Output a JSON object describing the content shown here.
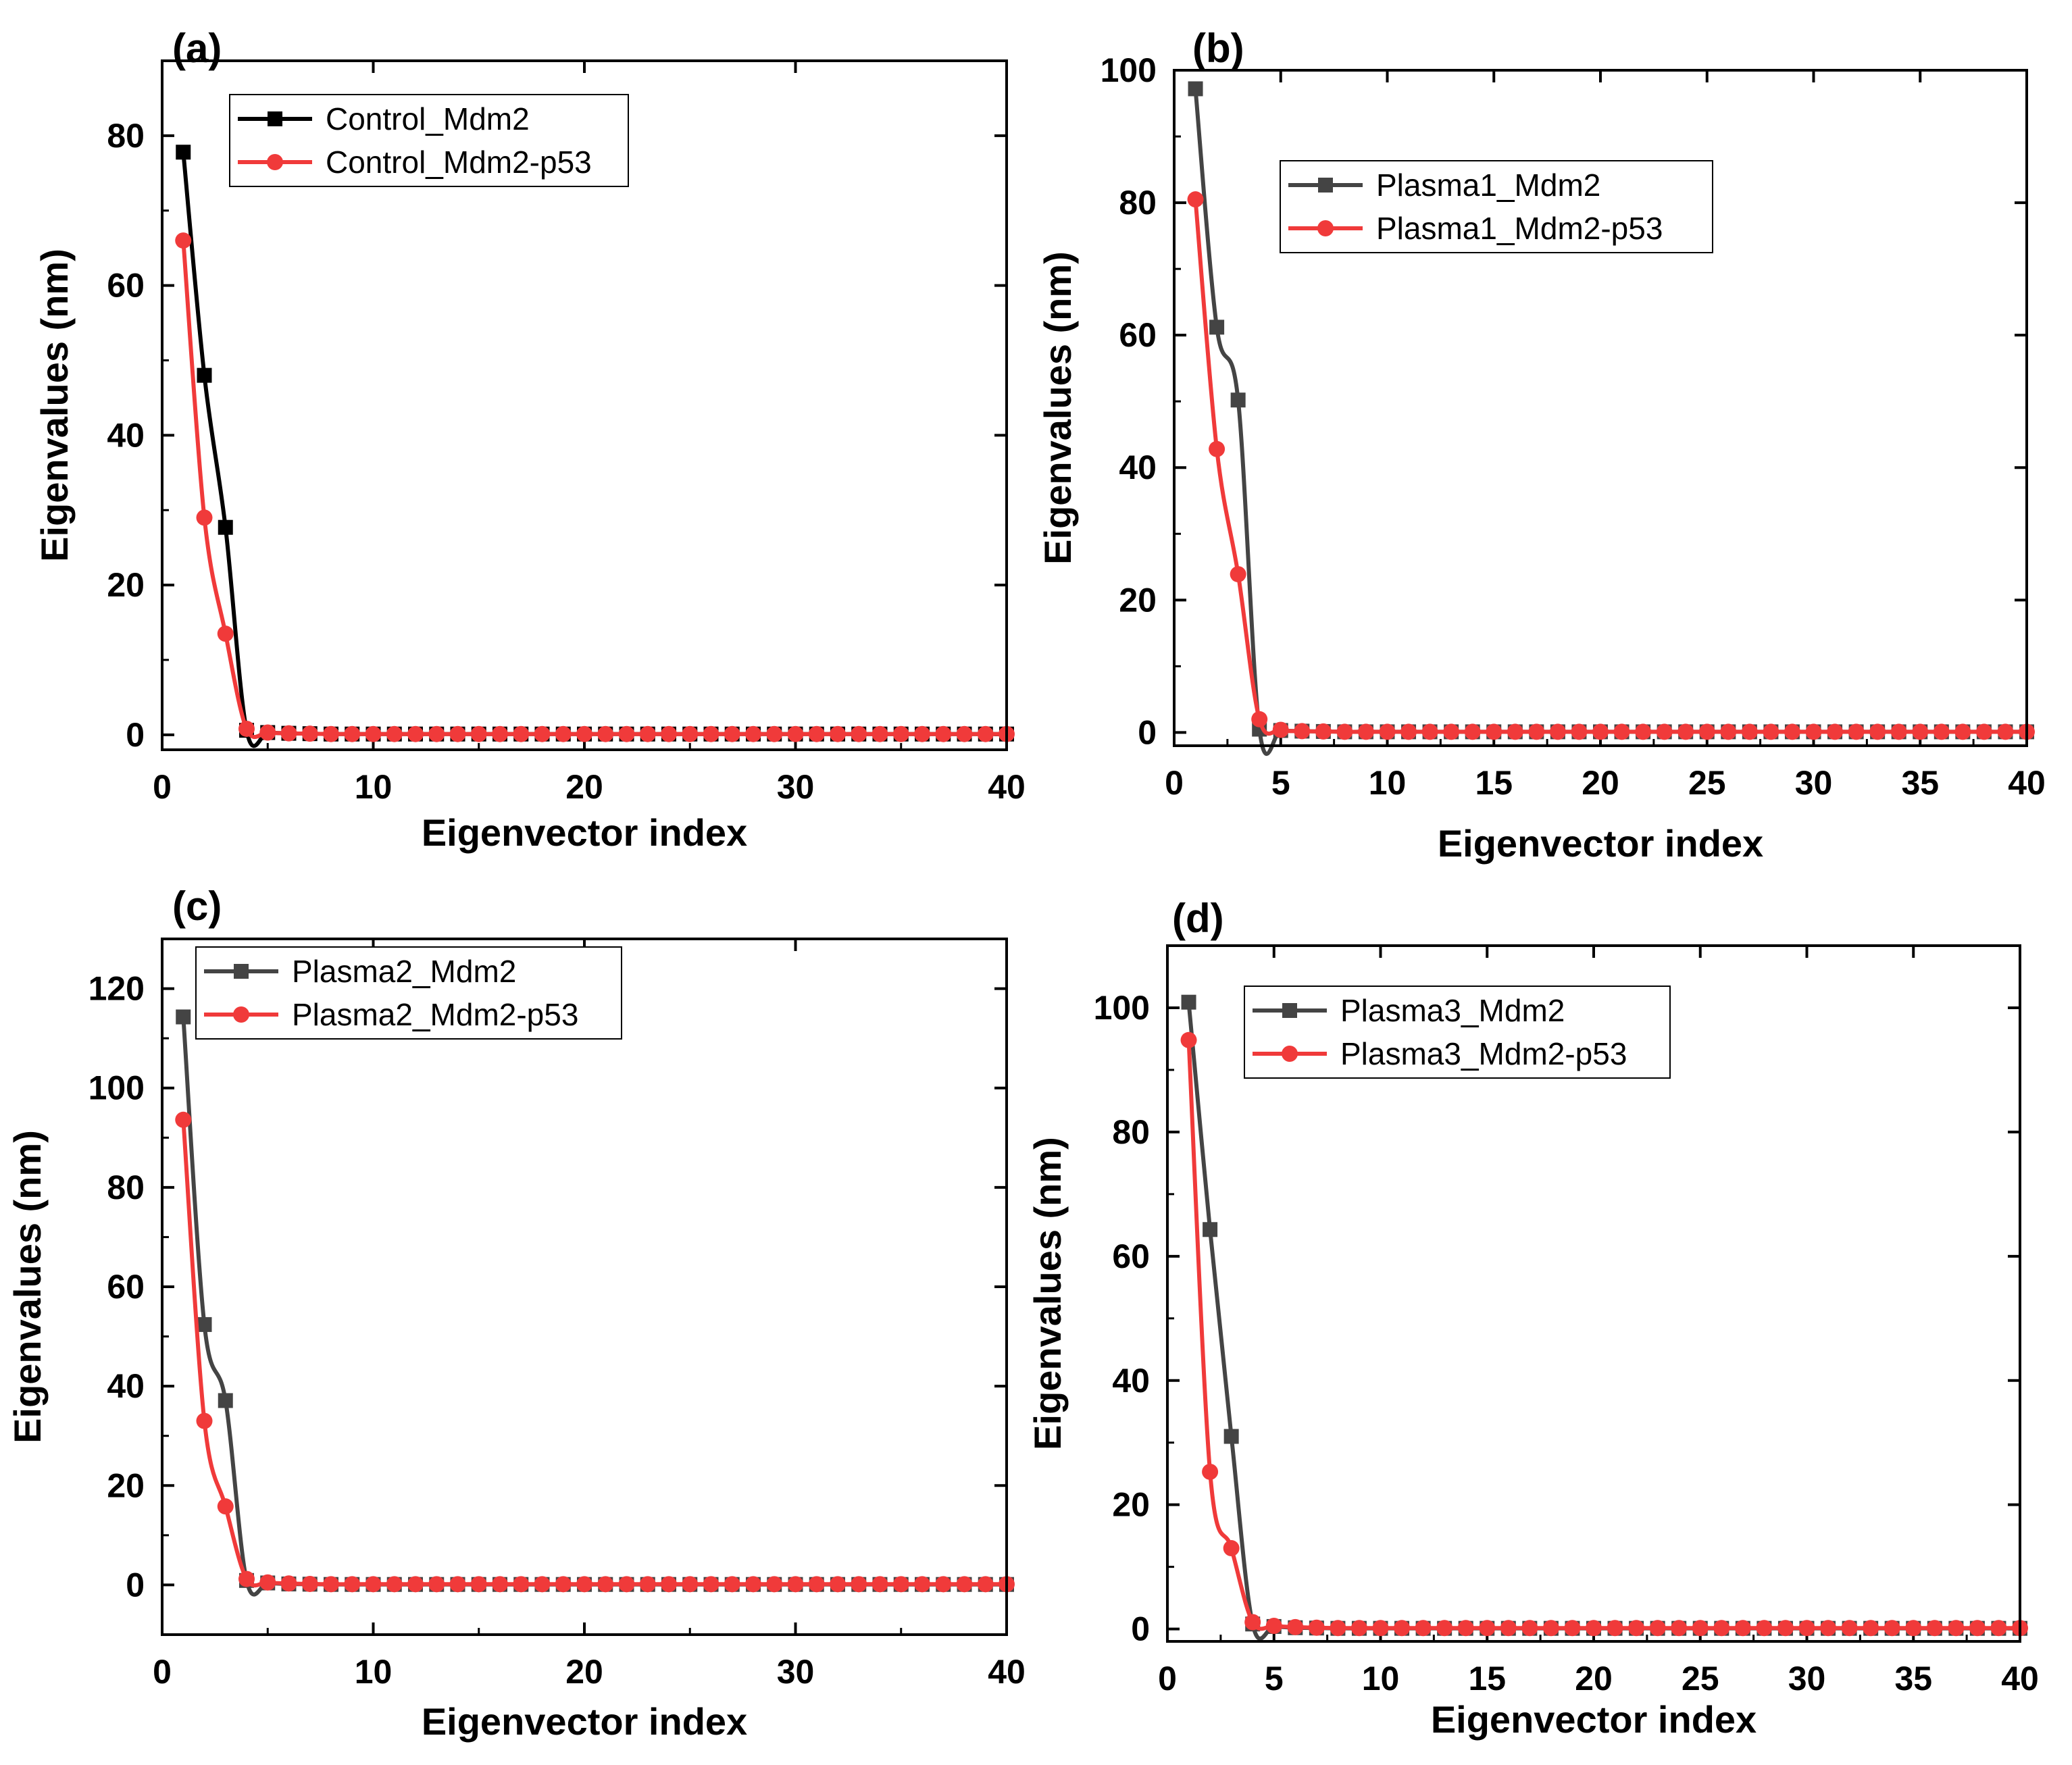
{
  "colors": {
    "series_gray": "#444444",
    "series_black": "#000000",
    "series_red": "#f03a3a",
    "axis": "#000000"
  },
  "chart_data": [
    {
      "type": "line",
      "panel_label": "(a)",
      "xlabel": "Eigenvector index",
      "ylabel": "Eigenvalues (nm)",
      "xlim": [
        0,
        40
      ],
      "ylim": [
        -2,
        90
      ],
      "xticks": [
        0,
        10,
        20,
        30,
        40
      ],
      "xtick_labels": [
        "0",
        "10",
        "20",
        "30",
        "40"
      ],
      "yticks": [
        0,
        20,
        40,
        60,
        80
      ],
      "ytick_labels": [
        "0",
        "20",
        "40",
        "60",
        "80"
      ],
      "legend_position": "top-left",
      "series": [
        {
          "name": "Control_Mdm2",
          "color_key": "series_black",
          "marker": "square",
          "head": [
            77.8,
            48.0,
            27.7,
            0.6,
            0.3,
            0.2,
            0.15
          ],
          "tail": 0.1
        },
        {
          "name": "Control_Mdm2-p53",
          "color_key": "series_red",
          "marker": "circle",
          "head": [
            66.0,
            29.0,
            13.5,
            0.8,
            0.3,
            0.2,
            0.15
          ],
          "tail": 0.1
        }
      ]
    },
    {
      "type": "line",
      "panel_label": "(b)",
      "xlabel": "Eigenvector index",
      "ylabel": "Eigenvalues (nm)",
      "xlim": [
        0,
        40
      ],
      "ylim": [
        -2,
        100
      ],
      "xticks": [
        0,
        5,
        10,
        15,
        20,
        25,
        30,
        35,
        40
      ],
      "xtick_labels": [
        "0",
        "5",
        "10",
        "15",
        "20",
        "25",
        "30",
        "35",
        "40"
      ],
      "yticks": [
        0,
        20,
        40,
        60,
        80,
        100
      ],
      "ytick_labels": [
        "0",
        "20",
        "40",
        "60",
        "80",
        "100"
      ],
      "legend_position": "top-center",
      "series": [
        {
          "name": "Plasma1_Mdm2",
          "color_key": "series_gray",
          "marker": "square",
          "head": [
            97.2,
            61.2,
            50.2,
            0.5,
            0.3,
            0.2,
            0.15
          ],
          "tail": 0.1
        },
        {
          "name": "Plasma1_Mdm2-p53",
          "color_key": "series_red",
          "marker": "circle",
          "head": [
            80.5,
            42.8,
            23.9,
            2.0,
            0.4,
            0.2,
            0.15
          ],
          "tail": 0.1
        }
      ]
    },
    {
      "type": "line",
      "panel_label": "(c)",
      "xlabel": "Eigenvector index",
      "ylabel": "Eigenvalues (nm)",
      "xlim": [
        0,
        40
      ],
      "ylim": [
        -10,
        130
      ],
      "xticks": [
        0,
        10,
        20,
        30,
        40
      ],
      "xtick_labels": [
        "0",
        "10",
        "20",
        "30",
        "40"
      ],
      "yticks": [
        0,
        20,
        40,
        60,
        80,
        100,
        120
      ],
      "ytick_labels": [
        "0",
        "20",
        "40",
        "60",
        "80",
        "100",
        "120"
      ],
      "legend_position": "top-left",
      "series": [
        {
          "name": "Plasma2_Mdm2",
          "color_key": "series_gray",
          "marker": "square",
          "head": [
            114.3,
            52.4,
            37.1,
            0.9,
            0.4,
            0.2,
            0.15
          ],
          "tail": 0.1
        },
        {
          "name": "Plasma2_Mdm2-p53",
          "color_key": "series_red",
          "marker": "circle",
          "head": [
            93.6,
            33.0,
            15.8,
            1.2,
            0.5,
            0.3,
            0.2
          ],
          "tail": 0.15
        }
      ]
    },
    {
      "type": "line",
      "panel_label": "(d)",
      "xlabel": "Eigenvector index",
      "ylabel": "Eigenvalues (nm)",
      "xlim": [
        0,
        40
      ],
      "ylim": [
        -2,
        110
      ],
      "xticks": [
        0,
        5,
        10,
        15,
        20,
        25,
        30,
        35,
        40
      ],
      "xtick_labels": [
        "0",
        "5",
        "10",
        "15",
        "20",
        "25",
        "30",
        "35",
        "40"
      ],
      "yticks": [
        0,
        20,
        40,
        60,
        80,
        100
      ],
      "ytick_labels": [
        "0",
        "20",
        "40",
        "60",
        "80",
        "100"
      ],
      "legend_position": "top-left",
      "series": [
        {
          "name": "Plasma3_Mdm2",
          "color_key": "series_gray",
          "marker": "square",
          "head": [
            100.9,
            64.3,
            31.0,
            0.8,
            0.4,
            0.2,
            0.15
          ],
          "tail": 0.1
        },
        {
          "name": "Plasma3_Mdm2-p53",
          "color_key": "series_red",
          "marker": "circle",
          "head": [
            94.8,
            25.3,
            13.0,
            1.1,
            0.5,
            0.3,
            0.2
          ],
          "tail": 0.15
        }
      ]
    }
  ]
}
